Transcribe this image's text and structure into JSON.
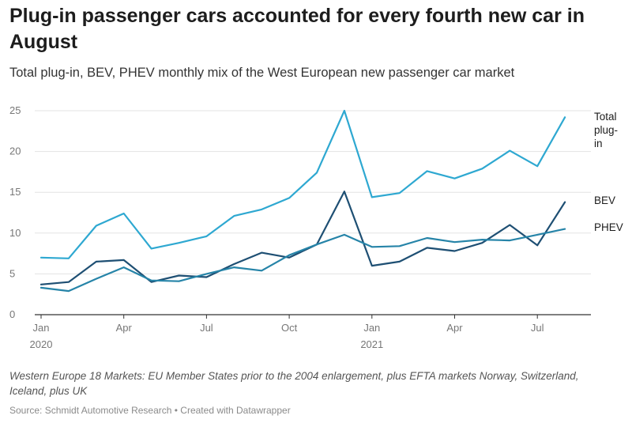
{
  "title": "Plug-in passenger cars accounted for every fourth new car in August",
  "subtitle": "Total plug-in, BEV, PHEV monthly mix of the West European new passenger car market",
  "note": "Western Europe 18 Markets: EU Member States prior to the 2004 enlargement, plus EFTA markets Norway, Switzerland, Iceland, plus UK",
  "source": "Source: Schmidt Automotive Research • Created with Datawrapper",
  "chart_data": {
    "type": "line",
    "title": "Plug-in passenger cars accounted for every fourth new car in August",
    "subtitle": "Total plug-in, BEV, PHEV monthly mix of the West European new passenger car market",
    "x": [
      "2020-01",
      "2020-02",
      "2020-03",
      "2020-04",
      "2020-05",
      "2020-06",
      "2020-07",
      "2020-08",
      "2020-09",
      "2020-10",
      "2020-11",
      "2020-12",
      "2021-01",
      "2021-02",
      "2021-03",
      "2021-04",
      "2021-05",
      "2021-06",
      "2021-07",
      "2021-08"
    ],
    "ylim": [
      0,
      25
    ],
    "yticks": [
      0,
      5,
      10,
      15,
      20,
      25
    ],
    "xticks": [
      {
        "index": 0,
        "label": "Jan",
        "sublabel": "2020"
      },
      {
        "index": 3,
        "label": "Apr",
        "sublabel": ""
      },
      {
        "index": 6,
        "label": "Jul",
        "sublabel": ""
      },
      {
        "index": 9,
        "label": "Oct",
        "sublabel": ""
      },
      {
        "index": 12,
        "label": "Jan",
        "sublabel": "2021"
      },
      {
        "index": 15,
        "label": "Apr",
        "sublabel": ""
      },
      {
        "index": 18,
        "label": "Jul",
        "sublabel": ""
      }
    ],
    "grid": true,
    "series": [
      {
        "name": "Total plug-in",
        "label_lines": [
          "Total",
          "plug-",
          "in"
        ],
        "color": "#2ea8d1",
        "values": [
          7.0,
          6.9,
          10.9,
          12.4,
          8.1,
          8.8,
          9.6,
          12.1,
          12.9,
          14.3,
          17.4,
          25.0,
          14.4,
          14.9,
          17.6,
          16.7,
          17.9,
          20.1,
          18.2,
          24.2
        ]
      },
      {
        "name": "BEV",
        "label_lines": [
          "BEV"
        ],
        "color": "#1e4f73",
        "values": [
          3.7,
          4.0,
          6.5,
          6.7,
          4.0,
          4.8,
          4.6,
          6.2,
          7.6,
          7.0,
          8.6,
          15.1,
          6.0,
          6.5,
          8.2,
          7.8,
          8.8,
          11.0,
          8.5,
          13.8
        ]
      },
      {
        "name": "PHEV",
        "label_lines": [
          "PHEV"
        ],
        "color": "#2684a8",
        "values": [
          3.3,
          2.9,
          4.4,
          5.8,
          4.2,
          4.1,
          5.0,
          5.8,
          5.4,
          7.3,
          8.6,
          9.8,
          8.3,
          8.4,
          9.4,
          8.9,
          9.2,
          9.1,
          9.8,
          10.5
        ]
      }
    ]
  }
}
